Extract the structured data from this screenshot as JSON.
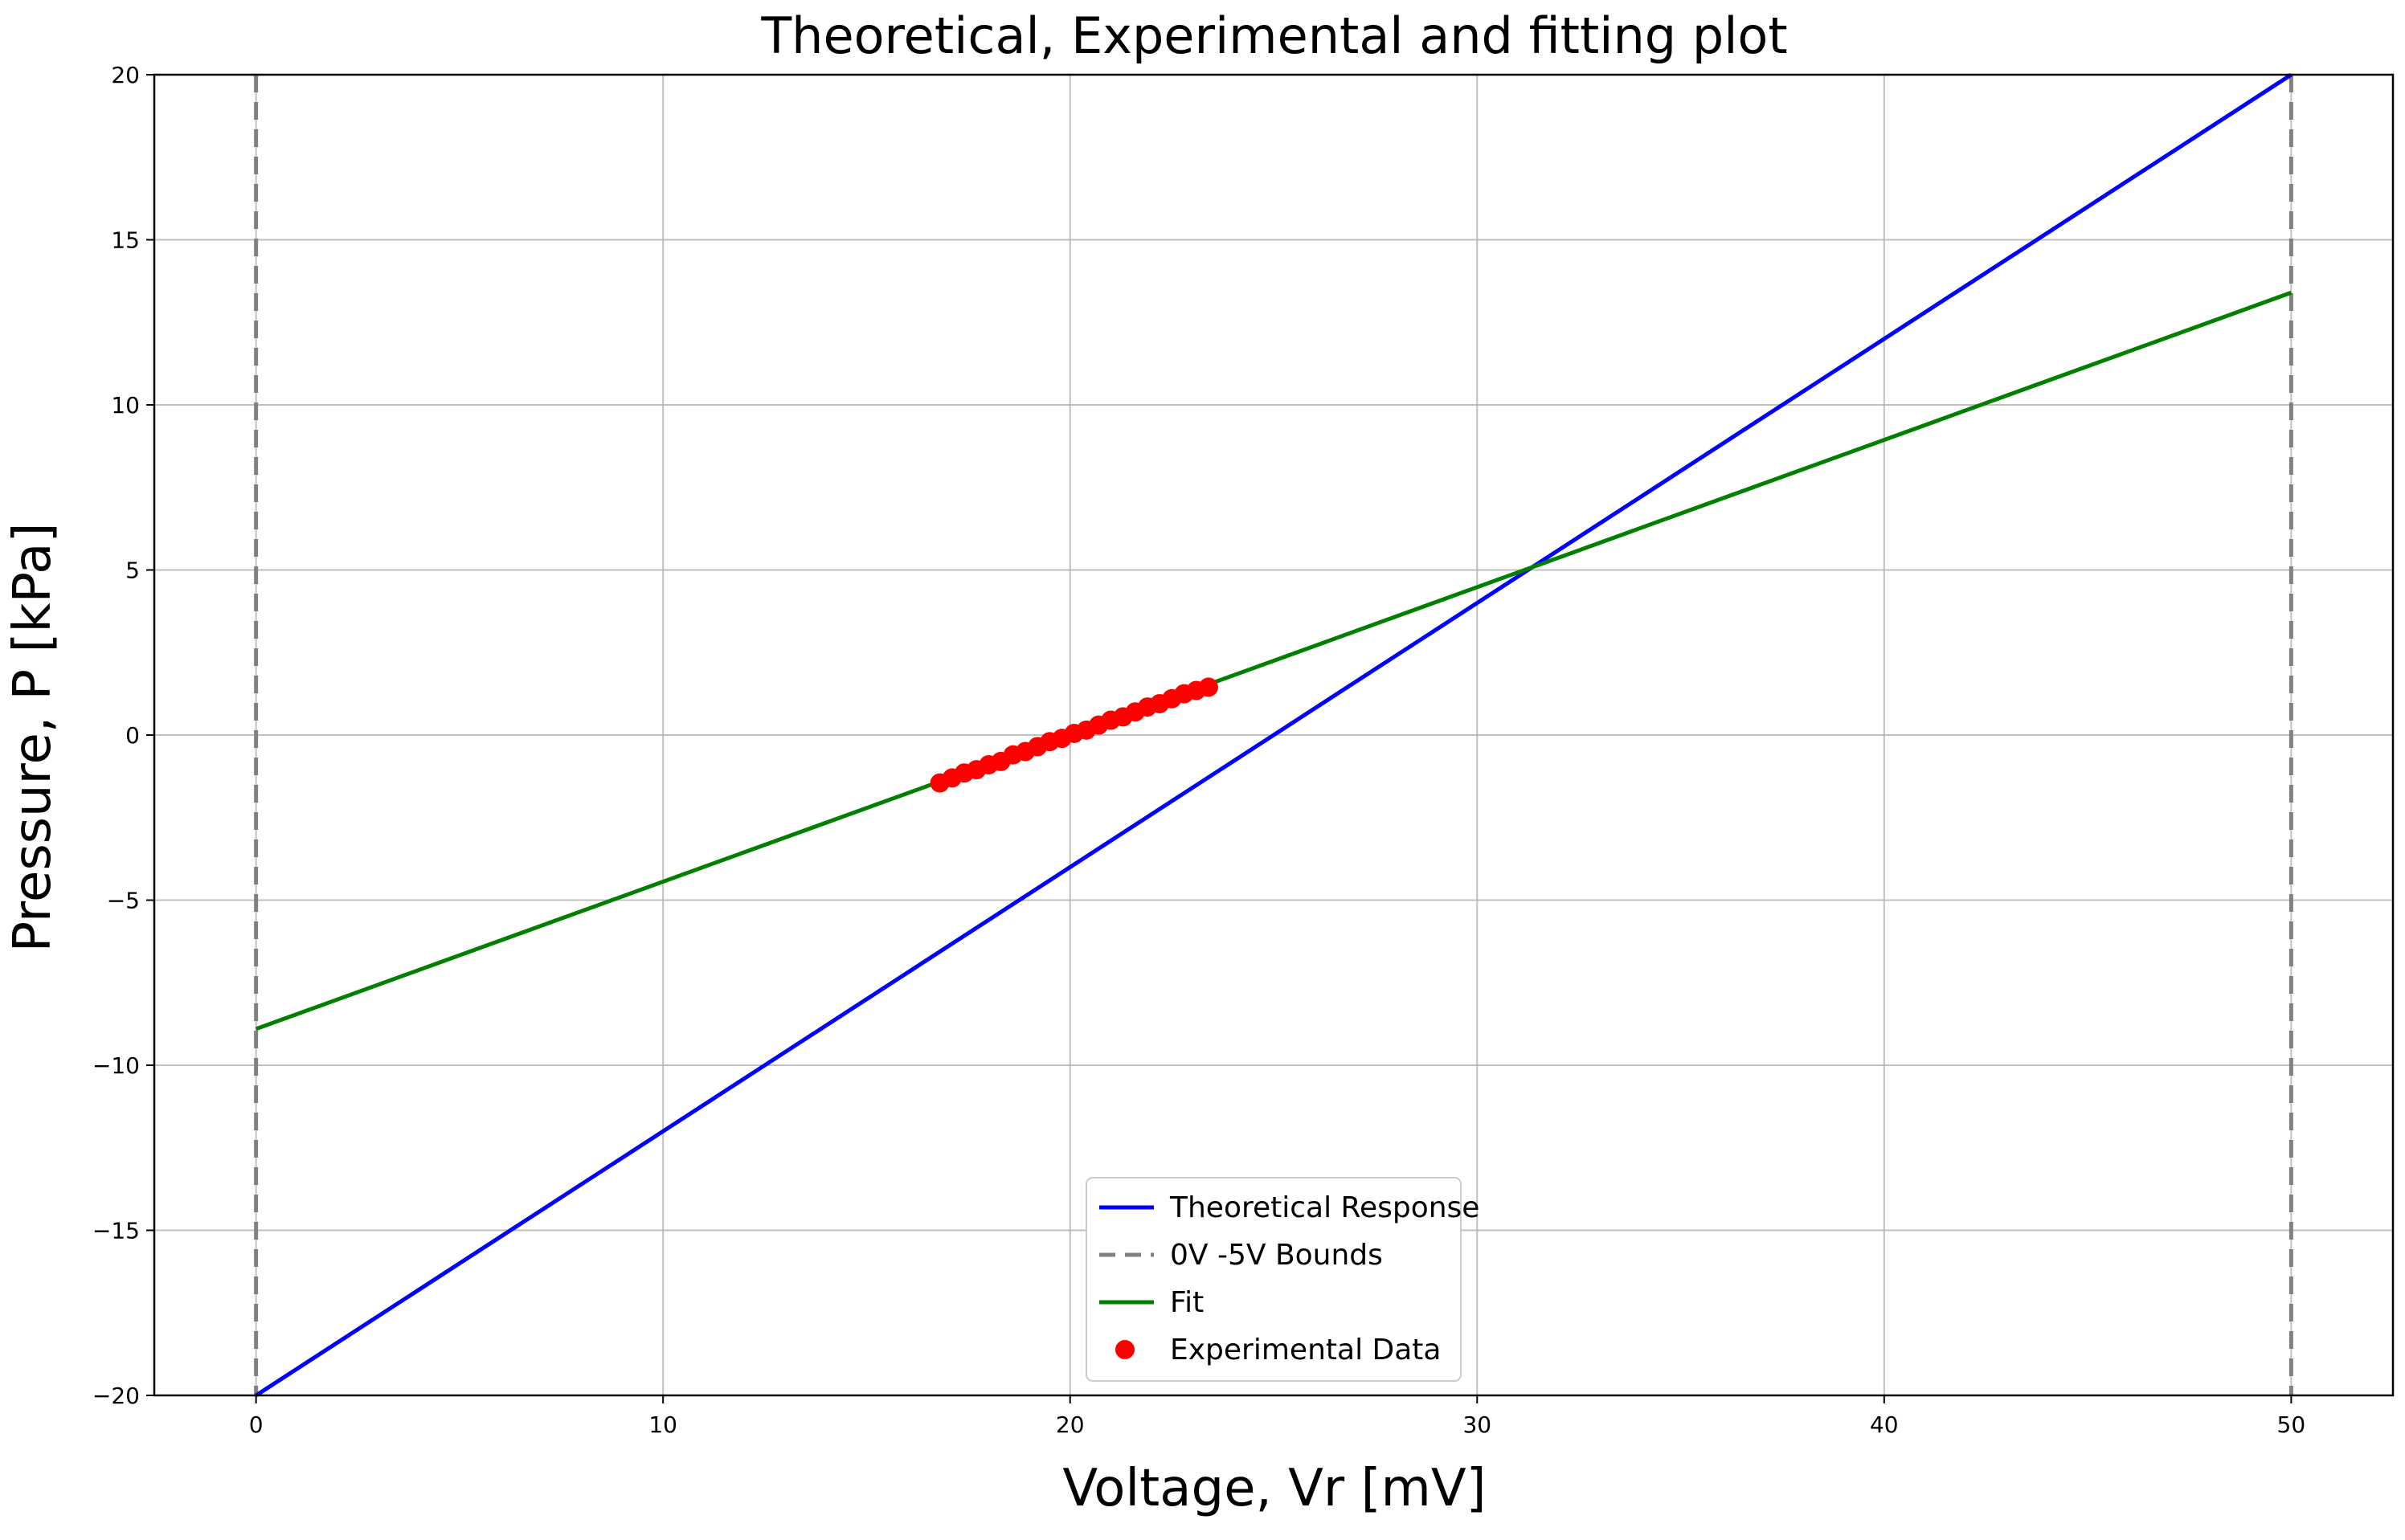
{
  "chart_data": {
    "type": "line",
    "title": "Theoretical, Experimental and fitting plot",
    "xlabel": "Voltage, Vr [mV]",
    "ylabel": "Pressure,  P [kPa]",
    "xlim": [
      -2.5,
      52.5
    ],
    "ylim": [
      -20,
      20
    ],
    "xticks": [
      0,
      10,
      20,
      30,
      40,
      50
    ],
    "yticks": [
      -20,
      -15,
      -10,
      -5,
      0,
      5,
      10,
      15,
      20
    ],
    "xtick_labels": [
      "0",
      "10",
      "20",
      "30",
      "40",
      "50"
    ],
    "ytick_labels": [
      "−20",
      "−15",
      "−10",
      "−5",
      "0",
      "5",
      "10",
      "15",
      "20"
    ],
    "grid": true,
    "legend_position": "bottom-center",
    "series": [
      {
        "name": "Theoretical Response",
        "kind": "line",
        "style": "solid",
        "color": "#0000ff",
        "x": [
          0,
          50
        ],
        "y": [
          -20,
          20
        ]
      },
      {
        "name": "0V -5V Bounds",
        "kind": "vline",
        "style": "dashed",
        "color": "#808080",
        "x": [
          0,
          50
        ]
      },
      {
        "name": "Fit",
        "kind": "line",
        "style": "solid",
        "color": "#008000",
        "x": [
          0,
          50
        ],
        "y": [
          -8.9,
          13.4
        ]
      },
      {
        "name": "Experimental Data",
        "kind": "scatter",
        "color": "#ff0000",
        "x": [
          16.8,
          17.1,
          17.4,
          17.7,
          18.0,
          18.3,
          18.6,
          18.9,
          19.2,
          19.5,
          19.8,
          20.1,
          20.4,
          20.7,
          21.0,
          21.3,
          21.6,
          21.9,
          22.2,
          22.5,
          22.8,
          23.1,
          23.4
        ],
        "y": [
          -1.45,
          -1.3,
          -1.15,
          -1.05,
          -0.9,
          -0.8,
          -0.6,
          -0.5,
          -0.35,
          -0.2,
          -0.1,
          0.05,
          0.15,
          0.3,
          0.45,
          0.55,
          0.7,
          0.85,
          0.95,
          1.1,
          1.25,
          1.35,
          1.45
        ]
      }
    ]
  }
}
